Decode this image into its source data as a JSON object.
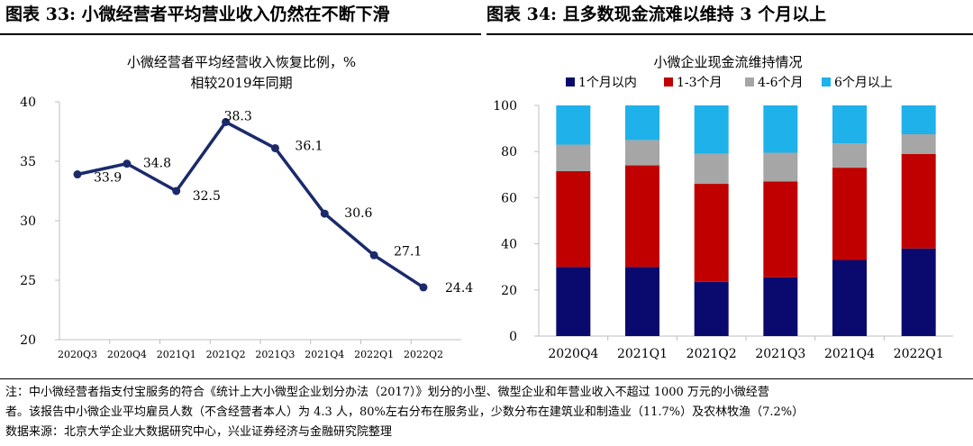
{
  "headers": {
    "left": "图表 33:  小微经营者平均营业收入仍然在不断下滑",
    "right": "图表 34:  且多数现金流难以维持 3 个月以上"
  },
  "chart_data": [
    {
      "type": "line",
      "title": "小微经营者平均经营收入恢复比例，%",
      "subtitle": "相较2019年同期",
      "categories": [
        "2020Q3",
        "2020Q4",
        "2021Q1",
        "2021Q2",
        "2021Q3",
        "2021Q4",
        "2022Q1",
        "2022Q2"
      ],
      "values": [
        33.9,
        34.8,
        32.5,
        38.3,
        36.1,
        30.6,
        27.1,
        24.4
      ],
      "data_labels": [
        "33.9",
        "34.8",
        "32.5",
        "38.3",
        "36.1",
        "30.6",
        "27.1",
        "24.4"
      ],
      "ylim": [
        20,
        40
      ],
      "yticks": [
        "20",
        "25",
        "30",
        "35",
        "40"
      ],
      "color": "#1b2a6b"
    },
    {
      "type": "bar",
      "stacked": true,
      "title": "小微企业现金流维持情况",
      "categories": [
        "2020Q4",
        "2021Q1",
        "2021Q2",
        "2021Q3",
        "2021Q4",
        "2022Q1"
      ],
      "series": [
        {
          "name": "1个月以内",
          "color": "#0a0a6e",
          "values": [
            30,
            30,
            23.5,
            25.5,
            33,
            38
          ]
        },
        {
          "name": "1-3个月",
          "color": "#c00000",
          "values": [
            41.5,
            44,
            42.5,
            41.5,
            40,
            41
          ]
        },
        {
          "name": "4-6个月",
          "color": "#a6a6a6",
          "values": [
            11.5,
            11,
            13,
            12.5,
            10.5,
            8.5
          ]
        },
        {
          "name": "6个月以上",
          "color": "#1fb1ea",
          "values": [
            17,
            15,
            21,
            20.5,
            16.5,
            12.5
          ]
        }
      ],
      "ylim": [
        0,
        100
      ],
      "yticks": [
        "0",
        "20",
        "40",
        "60",
        "80",
        "100"
      ]
    }
  ],
  "notes": {
    "line1": "注：中小微经营者指支付宝服务的符合《统计上大小微型企业划分办法（2017）》划分的小型、微型企业和年营业收入不超过 1000 万元的小微经营",
    "line2": "者。该报告中小微企业平均雇员人数（不含经营者本人）为 4.3 人，80%左右分布在服务业，少数分布在建筑业和制造业（11.7%）及农林牧渔（7.2%）",
    "line3": "数据来源：北京大学企业大数据研究中心，兴业证券经济与金融研究院整理"
  }
}
